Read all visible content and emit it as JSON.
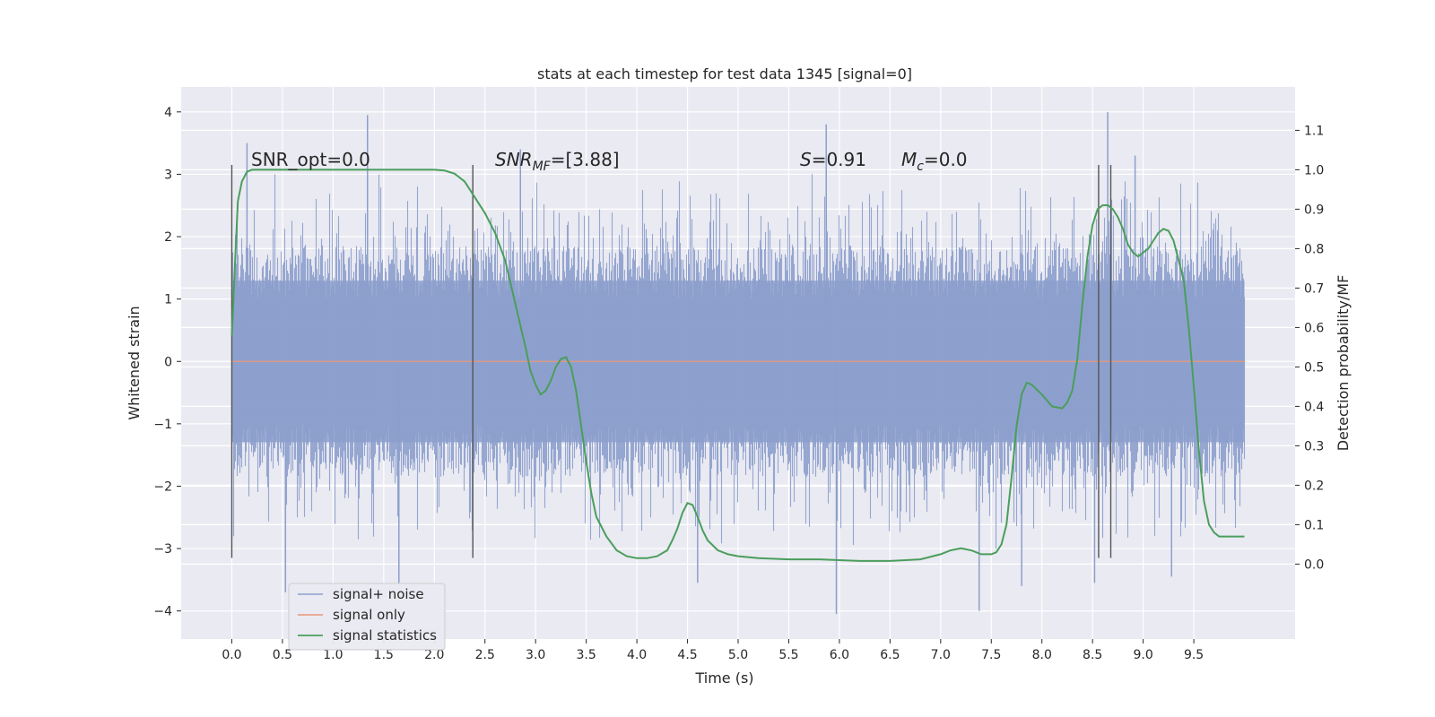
{
  "chart_data": {
    "type": "line",
    "title": "stats at each timestep for test data 1345 [signal=0]",
    "xlabel": "Time (s)",
    "ylabel_left": "Whitened strain",
    "ylabel_right": "Detection probability/MF",
    "xlim": [
      -0.5,
      10.5
    ],
    "ylim_left": [
      -4.45,
      4.4
    ],
    "ylim_right": [
      -0.19,
      1.21
    ],
    "x_ticks": [
      "0.0",
      "0.5",
      "1.0",
      "1.5",
      "2.0",
      "2.5",
      "3.0",
      "3.5",
      "4.0",
      "4.5",
      "5.0",
      "5.5",
      "6.0",
      "6.5",
      "7.0",
      "7.5",
      "8.0",
      "8.5",
      "9.0",
      "9.5"
    ],
    "x_tick_values": [
      0,
      0.5,
      1,
      1.5,
      2,
      2.5,
      3,
      3.5,
      4,
      4.5,
      5,
      5.5,
      6,
      6.5,
      7,
      7.5,
      8,
      8.5,
      9,
      9.5
    ],
    "y_left_ticks": [
      "−4",
      "−3",
      "−2",
      "−1",
      "0",
      "1",
      "2",
      "3",
      "4"
    ],
    "y_left_tick_values": [
      -4,
      -3,
      -2,
      -1,
      0,
      1,
      2,
      3,
      4
    ],
    "y_right_ticks": [
      "0.0",
      "0.1",
      "0.2",
      "0.3",
      "0.4",
      "0.5",
      "0.6",
      "0.7",
      "0.8",
      "0.9",
      "1.0",
      "1.1"
    ],
    "y_right_tick_values": [
      0,
      0.1,
      0.2,
      0.3,
      0.4,
      0.5,
      0.6,
      0.7,
      0.8,
      0.9,
      1.0,
      1.1
    ],
    "grid": true,
    "legend_placement": "lower-left",
    "annotations": {
      "snr_opt": "SNR_opt=0.0",
      "snr_mf_main": "SNR",
      "snr_mf_sub": "MF",
      "snr_mf_rest": "=[3.88]",
      "s_main": "S",
      "s_rest": "=0.91",
      "mc_main": "M",
      "mc_sub": "c",
      "mc_rest": "=0.0"
    },
    "vertical_markers": {
      "x": [
        0.0,
        2.38,
        8.56,
        8.68
      ],
      "y_range_left": [
        -3.15,
        3.15
      ]
    },
    "series": [
      {
        "name": "signal+ noise",
        "color": "#8c9fcc",
        "axis": "left",
        "x_range": [
          0.0,
          10.0
        ],
        "core_amplitude": 1.85,
        "peak_range": [
          -4.05,
          4.0
        ],
        "peaks": [
          {
            "x": 1.34,
            "y": 3.95
          },
          {
            "x": 8.65,
            "y": 4.0
          },
          {
            "x": 5.87,
            "y": 3.8
          },
          {
            "x": 5.97,
            "y": -4.05
          },
          {
            "x": 0.53,
            "y": -3.7
          },
          {
            "x": 7.38,
            "y": -4.0
          },
          {
            "x": 1.65,
            "y": -3.55
          },
          {
            "x": 4.6,
            "y": -3.55
          },
          {
            "x": 8.52,
            "y": -3.55
          },
          {
            "x": 9.28,
            "y": -3.45
          },
          {
            "x": 7.8,
            "y": -3.6
          },
          {
            "x": 0.15,
            "y": 3.5
          },
          {
            "x": 2.85,
            "y": 3.4
          },
          {
            "x": 8.92,
            "y": 3.3
          }
        ]
      },
      {
        "name": "signal only",
        "color": "#e8987a",
        "axis": "left",
        "x": [
          0.0,
          10.0
        ],
        "y": [
          0.0,
          0.0
        ]
      },
      {
        "name": "signal statistics",
        "color": "#4a9e5c",
        "axis": "right",
        "x": [
          0.0,
          0.03,
          0.06,
          0.1,
          0.15,
          0.2,
          0.3,
          0.5,
          0.8,
          1.0,
          1.5,
          1.8,
          2.0,
          2.1,
          2.2,
          2.3,
          2.4,
          2.5,
          2.6,
          2.7,
          2.8,
          2.9,
          2.95,
          3.0,
          3.05,
          3.1,
          3.15,
          3.2,
          3.25,
          3.3,
          3.35,
          3.4,
          3.45,
          3.5,
          3.55,
          3.6,
          3.7,
          3.8,
          3.9,
          4.0,
          4.1,
          4.2,
          4.3,
          4.35,
          4.4,
          4.45,
          4.5,
          4.55,
          4.6,
          4.65,
          4.7,
          4.8,
          4.9,
          5.0,
          5.2,
          5.5,
          5.8,
          6.0,
          6.2,
          6.5,
          6.8,
          7.0,
          7.1,
          7.2,
          7.3,
          7.4,
          7.5,
          7.55,
          7.6,
          7.65,
          7.7,
          7.75,
          7.8,
          7.85,
          7.9,
          8.0,
          8.1,
          8.2,
          8.25,
          8.3,
          8.35,
          8.4,
          8.45,
          8.5,
          8.55,
          8.6,
          8.65,
          8.7,
          8.75,
          8.8,
          8.85,
          8.9,
          8.95,
          9.0,
          9.05,
          9.1,
          9.15,
          9.2,
          9.25,
          9.3,
          9.35,
          9.4,
          9.45,
          9.5,
          9.55,
          9.6,
          9.65,
          9.7,
          9.75,
          9.8,
          9.85,
          9.9,
          9.95,
          10.0
        ],
        "y": [
          0.58,
          0.75,
          0.92,
          0.97,
          0.995,
          1.0,
          1.0,
          1.0,
          1.0,
          1.0,
          1.0,
          1.0,
          1.0,
          0.998,
          0.99,
          0.97,
          0.93,
          0.89,
          0.84,
          0.77,
          0.66,
          0.55,
          0.49,
          0.455,
          0.43,
          0.44,
          0.465,
          0.5,
          0.52,
          0.525,
          0.5,
          0.44,
          0.35,
          0.26,
          0.18,
          0.12,
          0.07,
          0.035,
          0.02,
          0.015,
          0.015,
          0.02,
          0.035,
          0.06,
          0.09,
          0.13,
          0.155,
          0.15,
          0.12,
          0.085,
          0.06,
          0.035,
          0.025,
          0.02,
          0.015,
          0.012,
          0.012,
          0.01,
          0.008,
          0.008,
          0.012,
          0.025,
          0.035,
          0.04,
          0.035,
          0.025,
          0.025,
          0.03,
          0.05,
          0.1,
          0.22,
          0.35,
          0.43,
          0.46,
          0.455,
          0.43,
          0.4,
          0.395,
          0.41,
          0.44,
          0.52,
          0.66,
          0.78,
          0.86,
          0.9,
          0.91,
          0.91,
          0.9,
          0.88,
          0.85,
          0.81,
          0.79,
          0.78,
          0.79,
          0.8,
          0.82,
          0.84,
          0.85,
          0.845,
          0.82,
          0.77,
          0.72,
          0.6,
          0.45,
          0.29,
          0.16,
          0.1,
          0.08,
          0.07,
          0.07,
          0.07,
          0.07,
          0.07,
          0.07
        ]
      }
    ]
  }
}
